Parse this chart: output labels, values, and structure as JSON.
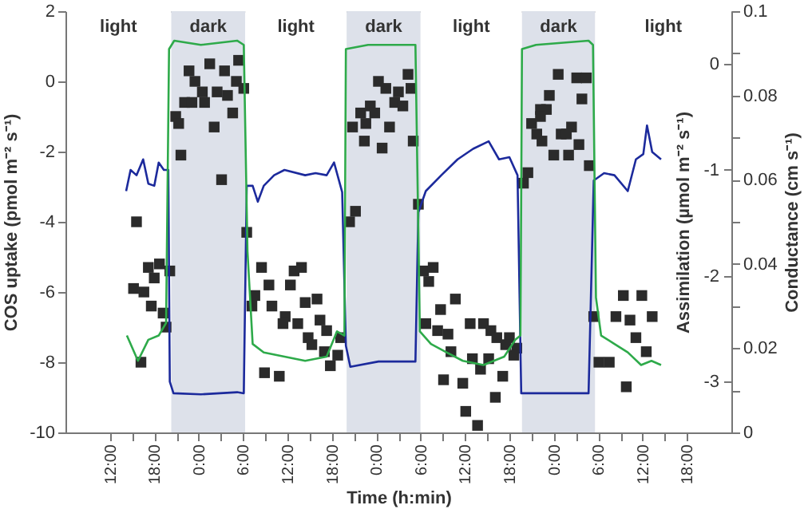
{
  "chart_data": {
    "type": "scatter",
    "xlabel": "Time (h:min)",
    "ylabel": "COS uptake (pmol  m⁻² s⁻¹)",
    "y2label": "Assimilation (µmol m⁻² s⁻¹)",
    "y3label": "Conductance (cm s⁻¹)",
    "xlim": [
      "2000-01-01T06:00",
      "2000-01-05T00:00"
    ],
    "xticks": [
      {
        "value": "2000-01-01T12:00",
        "label": "12:00"
      },
      {
        "value": "2000-01-01T15:00",
        "label": null
      },
      {
        "value": "2000-01-01T18:00",
        "label": "18:00"
      },
      {
        "value": "2000-01-01T21:00",
        "label": null
      },
      {
        "value": "2000-01-02T00:00",
        "label": "0:00"
      },
      {
        "value": "2000-01-02T03:00",
        "label": null
      },
      {
        "value": "2000-01-02T06:00",
        "label": "6:00"
      },
      {
        "value": "2000-01-02T09:00",
        "label": null
      },
      {
        "value": "2000-01-02T12:00",
        "label": "12:00"
      },
      {
        "value": "2000-01-02T15:00",
        "label": null
      },
      {
        "value": "2000-01-02T18:00",
        "label": "18:00"
      },
      {
        "value": "2000-01-02T21:00",
        "label": null
      },
      {
        "value": "2000-01-03T00:00",
        "label": "0:00"
      },
      {
        "value": "2000-01-03T03:00",
        "label": null
      },
      {
        "value": "2000-01-03T06:00",
        "label": "6:00"
      },
      {
        "value": "2000-01-03T09:00",
        "label": null
      },
      {
        "value": "2000-01-03T12:00",
        "label": "12:00"
      },
      {
        "value": "2000-01-03T15:00",
        "label": null
      },
      {
        "value": "2000-01-03T18:00",
        "label": "18:00"
      },
      {
        "value": "2000-01-03T21:00",
        "label": null
      },
      {
        "value": "2000-01-04T00:00",
        "label": "0:00"
      },
      {
        "value": "2000-01-04T03:00",
        "label": null
      },
      {
        "value": "2000-01-04T06:00",
        "label": "6:00"
      },
      {
        "value": "2000-01-04T09:00",
        "label": null
      },
      {
        "value": "2000-01-04T12:00",
        "label": "12:00"
      },
      {
        "value": "2000-01-04T15:00",
        "label": null
      },
      {
        "value": "2000-01-04T18:00",
        "label": "18:00"
      }
    ],
    "ylim": [
      -10,
      2
    ],
    "yticks": [
      -10,
      -8,
      -6,
      -4,
      -2,
      0,
      2
    ],
    "y2lim": [
      -3.48,
      0.5
    ],
    "y2ticks": [
      0,
      -1,
      -2,
      -3
    ],
    "y3lim": [
      0,
      0.1
    ],
    "y3ticks": [
      0,
      {
        "value": 0.01,
        "label": null
      },
      0.02,
      {
        "value": 0.03,
        "label": null
      },
      0.04,
      {
        "value": 0.05,
        "label": null
      },
      0.06,
      {
        "value": 0.07,
        "label": null
      },
      0.08,
      {
        "value": 0.09,
        "label": null
      },
      0.1
    ],
    "bands": [
      {
        "axis": "x",
        "from": "2000-01-01T06:00",
        "to": "2000-01-01T20:18",
        "label": "light",
        "color": "#ffffff"
      },
      {
        "axis": "x",
        "from": "2000-01-01T20:18",
        "to": "2000-01-02T06:18",
        "label": "dark",
        "color": "#dde1ea"
      },
      {
        "axis": "x",
        "from": "2000-01-02T06:18",
        "to": "2000-01-02T20:00",
        "label": "light",
        "color": "#ffffff"
      },
      {
        "axis": "x",
        "from": "2000-01-02T20:00",
        "to": "2000-01-03T06:00",
        "label": "dark",
        "color": "#dde1ea"
      },
      {
        "axis": "x",
        "from": "2000-01-03T06:00",
        "to": "2000-01-03T19:42",
        "label": "light",
        "color": "#ffffff"
      },
      {
        "axis": "x",
        "from": "2000-01-03T19:42",
        "to": "2000-01-04T05:36",
        "label": "dark",
        "color": "#dde1ea"
      },
      {
        "axis": "x",
        "from": "2000-01-04T05:36",
        "to": "2000-01-05T00:00",
        "label": "light",
        "color": "#ffffff"
      }
    ],
    "series": [
      {
        "marker": "square",
        "color": "#2b2b2b",
        "x": [
          "2000-01-01T22:42",
          "2000-01-01T23:30",
          "2000-01-02T01:30",
          "2000-01-02T03:30",
          "2000-01-02T05:24",
          "2000-01-02T05:06",
          "2000-01-02T06:06",
          "2000-01-02T00:30",
          "2000-01-02T02:30",
          "2000-01-02T03:54",
          "2000-01-01T22:06",
          "2000-01-01T23:06",
          "2000-01-02T00:48",
          "2000-01-01T20:54",
          "2000-01-01T21:18",
          "2000-01-02T04:36",
          "2000-01-02T02:06",
          "2000-01-01T21:36",
          "2000-01-02T03:06",
          "2000-01-01T15:36",
          "2000-01-02T06:30",
          "2000-01-01T17:12",
          "2000-01-01T18:42",
          "2000-01-01T18:00",
          "2000-01-01T20:06",
          "2000-01-01T15:12",
          "2000-01-01T16:36",
          "2000-01-01T17:36",
          "2000-01-01T19:12",
          "2000-01-01T19:36",
          "2000-01-01T16:12",
          "2000-01-02T08:30",
          "2000-01-02T09:30",
          "2000-01-02T07:36",
          "2000-01-02T07:12",
          "2000-01-02T12:54",
          "2000-01-02T13:54",
          "2000-01-02T12:24",
          "2000-01-02T09:54",
          "2000-01-02T14:24",
          "2000-01-02T16:00",
          "2000-01-02T11:42",
          "2000-01-02T11:24",
          "2000-01-02T13:24",
          "2000-01-02T16:24",
          "2000-01-02T14:48",
          "2000-01-02T17:18",
          "2000-01-02T15:18",
          "2000-01-02T19:12",
          "2000-01-02T17:00",
          "2000-01-02T18:48",
          "2000-01-02T17:48",
          "2000-01-02T08:54",
          "2000-01-02T10:54",
          "2000-01-03T00:18",
          "2000-01-03T01:18",
          "2000-01-03T04:18",
          "2000-01-03T04:42",
          "2000-01-03T03:00",
          "2000-01-03T02:30",
          "2000-01-03T03:36",
          "2000-01-02T21:54",
          "2000-01-02T23:12",
          "2000-01-02T23:48",
          "2000-01-02T22:36",
          "2000-01-02T20:48",
          "2000-01-03T01:48",
          "2000-01-02T22:24",
          "2000-01-03T00:48",
          "2000-01-03T05:00",
          "2000-01-02T21:12",
          "2000-01-02T20:24",
          "2000-01-03T05:42",
          "2000-01-03T06:24",
          "2000-01-03T07:42",
          "2000-01-03T07:06",
          "2000-01-03T10:42",
          "2000-01-03T08:42",
          "2000-01-03T06:42",
          "2000-01-03T08:18",
          "2000-01-03T09:42",
          "2000-01-03T12:42",
          "2000-01-03T14:30",
          "2000-01-03T15:30",
          "2000-01-03T16:18",
          "2000-01-03T18:00",
          "2000-01-03T17:30",
          "2000-01-03T19:00",
          "2000-01-03T18:36",
          "2000-01-03T10:06",
          "2000-01-03T13:00",
          "2000-01-03T15:12",
          "2000-01-03T14:06",
          "2000-01-03T09:06",
          "2000-01-03T11:42",
          "2000-01-03T17:06",
          "2000-01-03T16:06",
          "2000-01-03T12:06",
          "2000-01-03T13:42",
          "2000-01-04T00:36",
          "2000-01-03T23:24",
          "2000-01-03T22:12",
          "2000-01-03T23:00",
          "2000-01-03T21:00",
          "2000-01-03T21:42",
          "2000-01-03T22:24",
          "2000-01-04T01:00",
          "2000-01-04T00:00",
          "2000-01-03T20:30",
          "2000-01-03T19:54",
          "2000-01-04T03:06",
          "2000-01-04T04:24",
          "2000-01-04T03:48",
          "2000-01-03T22:12",
          "2000-01-04T02:24",
          "2000-01-04T01:42",
          "2000-01-04T03:24",
          "2000-01-04T02:00",
          "2000-01-04T04:48",
          "2000-01-04T05:24",
          "2000-01-04T09:24",
          "2000-01-04T11:54",
          "2000-01-04T08:24",
          "2000-01-04T10:18",
          "2000-01-04T13:18",
          "2000-01-04T11:06",
          "2000-01-04T12:30",
          "2000-01-04T06:06",
          "2000-01-04T07:30",
          "2000-01-04T09:48"
        ],
        "values": [
          0.3,
          0.0,
          0.5,
          0.3,
          0.6,
          0.0,
          -0.2,
          -0.3,
          -0.3,
          -0.4,
          -0.6,
          -0.6,
          -0.6,
          -1.0,
          -1.2,
          -0.9,
          -1.3,
          -2.1,
          -2.8,
          -4.0,
          -4.3,
          -5.3,
          -5.2,
          -5.6,
          -5.4,
          -5.9,
          -6.0,
          -6.4,
          -6.6,
          -7.0,
          -8.0,
          -5.3,
          -5.8,
          -6.1,
          -6.4,
          -5.4,
          -5.3,
          -5.8,
          -6.4,
          -6.3,
          -6.2,
          -6.7,
          -6.9,
          -6.9,
          -6.8,
          -7.3,
          -7.1,
          -7.5,
          -7.3,
          -7.7,
          -7.8,
          -8.1,
          -8.3,
          -8.4,
          0.0,
          -0.2,
          0.2,
          -0.2,
          -0.3,
          -0.6,
          -0.7,
          -0.9,
          -0.7,
          -0.9,
          -1.2,
          -1.3,
          -1.3,
          -1.7,
          -1.9,
          -1.7,
          -3.7,
          -4.0,
          -3.5,
          -5.4,
          -5.3,
          -5.7,
          -6.2,
          -6.5,
          -6.9,
          -7.1,
          -7.2,
          -6.9,
          -6.9,
          -7.1,
          -7.3,
          -7.3,
          -7.5,
          -7.6,
          -7.8,
          -7.7,
          -7.9,
          -7.9,
          -8.2,
          -8.5,
          -8.6,
          -8.4,
          -9.0,
          -9.4,
          -9.8,
          0.2,
          -0.4,
          -0.8,
          -0.8,
          -1.2,
          -1.5,
          -1.7,
          -1.5,
          -2.1,
          -2.6,
          -2.9,
          0.1,
          0.1,
          -0.5,
          -1.0,
          -1.3,
          -1.5,
          -1.8,
          -2.1,
          -2.4,
          -6.7,
          -6.1,
          -6.1,
          -6.7,
          -6.8,
          -6.7,
          -7.3,
          -7.7,
          -8.0,
          -8.0,
          -8.7
        ]
      },
      {
        "type": "line",
        "axis": "y2",
        "color": "#1c2a9c",
        "x": [
          "2000-01-01T14:12",
          "2000-01-01T14:48",
          "2000-01-01T15:36",
          "2000-01-01T16:30",
          "2000-01-01T17:12",
          "2000-01-01T18:00",
          "2000-01-01T18:36",
          "2000-01-01T19:18",
          "2000-01-01T19:54",
          "2000-01-01T20:06",
          "2000-01-01T20:36",
          "2000-01-02T00:18",
          "2000-01-02T05:12",
          "2000-01-02T06:06",
          "2000-01-02T06:30",
          "2000-01-02T07:18",
          "2000-01-02T08:00",
          "2000-01-02T08:48",
          "2000-01-02T10:12",
          "2000-01-02T11:36",
          "2000-01-02T14:24",
          "2000-01-02T15:48",
          "2000-01-02T17:18",
          "2000-01-02T18:18",
          "2000-01-02T19:24",
          "2000-01-02T19:54",
          "2000-01-02T20:30",
          "2000-01-03T00:18",
          "2000-01-03T05:18",
          "2000-01-03T05:42",
          "2000-01-03T06:42",
          "2000-01-03T08:48",
          "2000-01-03T11:00",
          "2000-01-03T13:06",
          "2000-01-03T15:12",
          "2000-01-03T16:36",
          "2000-01-03T18:00",
          "2000-01-03T19:06",
          "2000-01-03T19:36",
          "2000-01-03T21:36",
          "2000-01-04T04:42",
          "2000-01-04T05:24",
          "2000-01-04T06:48",
          "2000-01-04T08:12",
          "2000-01-04T10:00",
          "2000-01-04T11:06",
          "2000-01-04T12:06",
          "2000-01-04T12:36",
          "2000-01-04T13:18",
          "2000-01-04T14:30"
        ],
        "values": [
          -1.2,
          -1.0,
          -1.05,
          -0.9,
          -1.13,
          -1.15,
          -0.93,
          -1.0,
          -1.0,
          -3.0,
          -3.11,
          -3.12,
          -3.1,
          -3.11,
          -1.15,
          -1.15,
          -1.3,
          -1.15,
          -1.05,
          -1.0,
          -1.05,
          -1.03,
          -1.05,
          -0.93,
          -1.21,
          -2.66,
          -2.86,
          -2.81,
          -2.81,
          -1.4,
          -1.2,
          -1.05,
          -0.9,
          -0.8,
          -0.73,
          -0.9,
          -0.88,
          -1.05,
          -3.11,
          -3.11,
          -3.11,
          -1.1,
          -1.03,
          -1.05,
          -1.2,
          -0.9,
          -0.85,
          -0.58,
          -0.83,
          -0.9
        ]
      },
      {
        "type": "line",
        "axis": "y3",
        "color": "#2eaa4a",
        "x": [
          "2000-01-01T14:18",
          "2000-01-01T15:48",
          "2000-01-01T17:12",
          "2000-01-01T18:36",
          "2000-01-01T19:36",
          "2000-01-01T20:00",
          "2000-01-01T20:42",
          "2000-01-02T00:18",
          "2000-01-02T05:12",
          "2000-01-02T06:06",
          "2000-01-02T06:36",
          "2000-01-02T07:18",
          "2000-01-02T08:48",
          "2000-01-02T11:36",
          "2000-01-02T14:24",
          "2000-01-02T17:18",
          "2000-01-02T18:42",
          "2000-01-02T19:42",
          "2000-01-02T19:54",
          "2000-01-02T22:54",
          "2000-01-03T05:18",
          "2000-01-03T05:54",
          "2000-01-03T07:24",
          "2000-01-03T09:30",
          "2000-01-03T11:42",
          "2000-01-03T14:30",
          "2000-01-03T17:18",
          "2000-01-03T18:48",
          "2000-01-03T19:30",
          "2000-01-03T19:42",
          "2000-01-03T21:36",
          "2000-01-04T04:42",
          "2000-01-04T05:18",
          "2000-01-04T05:42",
          "2000-01-04T06:24",
          "2000-01-04T08:12",
          "2000-01-04T10:00",
          "2000-01-04T11:48",
          "2000-01-04T13:12",
          "2000-01-04T14:30"
        ],
        "values": [
          0.023,
          0.017,
          0.022,
          0.023,
          0.026,
          0.091,
          0.093,
          0.092,
          0.093,
          0.092,
          0.043,
          0.021,
          0.019,
          0.018,
          0.017,
          0.018,
          0.024,
          0.023,
          0.091,
          0.092,
          0.092,
          0.024,
          0.021,
          0.019,
          0.017,
          0.016,
          0.018,
          0.022,
          0.023,
          0.091,
          0.092,
          0.093,
          0.092,
          0.032,
          0.023,
          0.021,
          0.019,
          0.016,
          0.017,
          0.016
        ]
      }
    ]
  }
}
